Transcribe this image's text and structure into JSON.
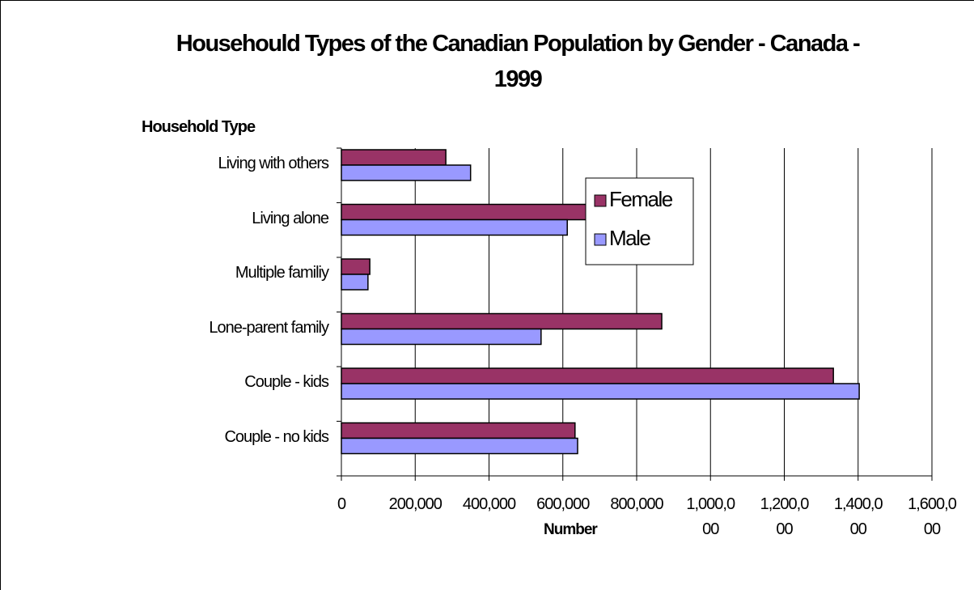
{
  "chart_data": {
    "type": "hbar",
    "title": "Househould Types of the Canadian Population by Gender - Canada - 1999",
    "y_label": "Household Type",
    "x_label": "Number",
    "categories": [
      "Living with others",
      "Living alone",
      "Multiple familiy",
      "Lone-parent family",
      "Couple - kids",
      "Couple - no kids"
    ],
    "series": [
      {
        "name": "Female",
        "color": "#993366",
        "values": [
          283000,
          690000,
          77000,
          868000,
          1333000,
          633000
        ]
      },
      {
        "name": "Male",
        "color": "#9999ff",
        "values": [
          350000,
          612000,
          72000,
          541000,
          1403000,
          640000
        ]
      }
    ],
    "xlim": [
      0,
      1600000
    ],
    "xticks": [
      0,
      {
        "value": 200000,
        "label": "200,000"
      },
      {
        "value": 400000,
        "label": "400,000"
      },
      {
        "value": 600000,
        "label": "600,000"
      },
      {
        "value": 800000,
        "label": "800,000"
      },
      {
        "value": 1000000,
        "label": "1,000,000"
      },
      {
        "value": 1200000,
        "label": "1,200,000"
      },
      {
        "value": 1400000,
        "label": "1,400,000"
      },
      {
        "value": 1600000,
        "label": "1,600,000"
      }
    ],
    "grid": true,
    "legend": "upper-middle"
  }
}
